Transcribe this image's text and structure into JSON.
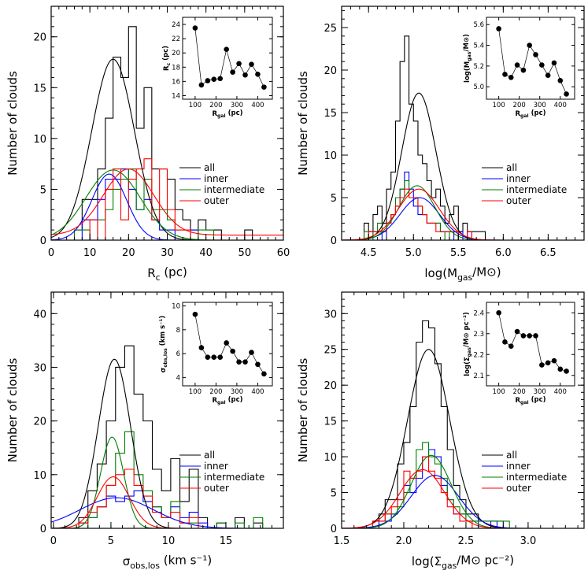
{
  "chart_data": [
    {
      "type": "histogram",
      "id": "rc",
      "xlabel": "R",
      "xlabel_sub": "c",
      "xlabel_post": " (pc)",
      "ylabel": "Number of clouds",
      "xlim": [
        0,
        60
      ],
      "ylim": [
        0,
        23
      ],
      "xticks": [
        0,
        10,
        20,
        30,
        40,
        50,
        60
      ],
      "xtick_labels": [
        "0",
        "10",
        "20",
        "30",
        "40",
        "50",
        "60"
      ],
      "yticks": [
        0,
        5,
        10,
        15,
        20
      ],
      "yminor": 1,
      "bin_width": 2,
      "bins_start": 6,
      "legend": [
        "all",
        "inner",
        "intermediate",
        "outer"
      ],
      "colors": [
        "#000000",
        "#0000ff",
        "#007f00",
        "#ff0000"
      ],
      "series": [
        {
          "name": "all",
          "counts": [
            1,
            4,
            4,
            7,
            12,
            18,
            16,
            21,
            11,
            15,
            7,
            7,
            6,
            3,
            2,
            1,
            2,
            1,
            1,
            0,
            0,
            0,
            1
          ]
        },
        {
          "name": "inner",
          "counts": [
            0,
            2,
            2,
            4,
            6,
            6,
            7,
            5,
            3,
            4,
            2,
            1,
            1,
            0,
            0,
            1
          ]
        },
        {
          "name": "intermediate",
          "counts": [
            1,
            1,
            0,
            2,
            3,
            5,
            6,
            7,
            3,
            6,
            3,
            3,
            2,
            1,
            1,
            0,
            1,
            1
          ]
        },
        {
          "name": "outer",
          "counts": [
            0,
            0,
            2,
            0,
            5,
            7,
            2,
            6,
            7,
            8,
            2,
            7,
            3,
            1,
            1,
            0,
            0,
            0,
            0,
            0,
            0,
            0,
            0
          ]
        }
      ],
      "gaussians": [
        {
          "name": "all",
          "amp": 17.8,
          "mu": 16.0,
          "sigma": 5.5,
          "offset": 0
        },
        {
          "name": "inner",
          "amp": 6.5,
          "mu": 15.0,
          "sigma": 4.5,
          "offset": 0
        },
        {
          "name": "intermediate",
          "amp": 6.9,
          "mu": 16.0,
          "sigma": 7.0,
          "offset": 0
        },
        {
          "name": "outer",
          "amp": 6.5,
          "mu": 20.0,
          "sigma": 6.5,
          "offset": 0.5
        }
      ],
      "inset": {
        "ylabel": "R_c (pc)",
        "ylabel_main": "R",
        "ylabel_sub": "c",
        "ylabel_post": " (pc)",
        "xlabel_main": "R",
        "xlabel_sub": "gal",
        "xlabel_post": " (pc)",
        "xlim": [
          40,
          470
        ],
        "ylim": [
          13.5,
          25
        ],
        "xticks": [
          100,
          200,
          300,
          400
        ],
        "yticks": [
          14,
          16,
          18,
          20,
          22,
          24
        ],
        "ytick_labels": [
          "14",
          "16",
          "18",
          "20",
          "22",
          "24"
        ],
        "x": [
          100,
          130,
          160,
          190,
          220,
          250,
          280,
          310,
          340,
          370,
          400,
          430
        ],
        "y": [
          23.5,
          15.5,
          16.1,
          16.3,
          16.4,
          20.5,
          17.3,
          18.5,
          16.9,
          18.4,
          17.0,
          15.2
        ]
      }
    },
    {
      "type": "histogram",
      "id": "mass",
      "xlabel": "log(M",
      "xlabel_sub": "gas",
      "xlabel_post": "/M⊙)",
      "ylabel": "Number of clouds",
      "xlim": [
        4.2,
        6.9
      ],
      "ylim": [
        0,
        27.5
      ],
      "xticks": [
        4.5,
        5.0,
        5.5,
        6.0,
        6.5
      ],
      "xtick_labels": [
        "4.5",
        "5.0",
        "5.5",
        "6.0",
        "6.5"
      ],
      "yticks": [
        0,
        5,
        10,
        15,
        20,
        25
      ],
      "yminor": 1,
      "bin_width": 0.05,
      "bins_start": 4.45,
      "legend": [
        "all",
        "inner",
        "intermediate",
        "outer"
      ],
      "colors": [
        "#000000",
        "#0000ff",
        "#007f00",
        "#ff0000"
      ],
      "series": [
        {
          "name": "all",
          "counts": [
            2,
            1,
            3,
            4,
            2,
            6,
            8,
            14,
            21,
            24,
            16,
            14,
            10,
            9,
            7,
            5,
            6,
            4,
            2,
            3,
            4,
            1,
            2,
            1,
            1,
            1,
            1
          ]
        },
        {
          "name": "inner",
          "counts": [
            0,
            0,
            1,
            1,
            0,
            2,
            3,
            4,
            6,
            8,
            6,
            4,
            3,
            3,
            2,
            2,
            2,
            1,
            1,
            1,
            0,
            1,
            0,
            1
          ]
        },
        {
          "name": "intermediate",
          "counts": [
            1,
            0,
            1,
            2,
            1,
            2,
            3,
            5,
            6,
            7,
            5,
            5,
            4,
            3,
            2,
            2,
            2,
            1,
            0,
            1,
            1
          ]
        },
        {
          "name": "outer",
          "counts": [
            0,
            1,
            1,
            1,
            1,
            2,
            3,
            4,
            5,
            6,
            5,
            5,
            4,
            3,
            2,
            2,
            1,
            1,
            1,
            1,
            1,
            0,
            0,
            1
          ]
        }
      ],
      "gaussians": [
        {
          "name": "all",
          "amp": 17.3,
          "mu": 5.06,
          "sigma": 0.19,
          "offset": 0
        },
        {
          "name": "inner",
          "amp": 5.0,
          "mu": 5.07,
          "sigma": 0.22,
          "offset": 0
        },
        {
          "name": "intermediate",
          "amp": 6.4,
          "mu": 5.04,
          "sigma": 0.2,
          "offset": 0
        },
        {
          "name": "outer",
          "amp": 6.0,
          "mu": 5.06,
          "sigma": 0.23,
          "offset": 0
        }
      ],
      "inset": {
        "ylabel_main": "log(M",
        "ylabel_sub": "gas",
        "ylabel_post": "/M⊙)",
        "xlabel_main": "R",
        "xlabel_sub": "gal",
        "xlabel_post": " (pc)",
        "xlim": [
          40,
          470
        ],
        "ylim": [
          4.88,
          5.67
        ],
        "xticks": [
          100,
          200,
          300,
          400
        ],
        "yticks": [
          5.0,
          5.2,
          5.4,
          5.6
        ],
        "ytick_labels": [
          "5.0",
          "5.2",
          "5.4",
          "5.6"
        ],
        "x": [
          100,
          130,
          160,
          190,
          220,
          250,
          280,
          310,
          340,
          370,
          400,
          430
        ],
        "y": [
          5.56,
          5.12,
          5.09,
          5.21,
          5.16,
          5.4,
          5.31,
          5.21,
          5.11,
          5.23,
          5.06,
          4.93
        ]
      }
    },
    {
      "type": "histogram",
      "id": "sigma",
      "xlabel": "σ",
      "xlabel_sub": "obs,los",
      "xlabel_post": " (km s⁻¹)",
      "ylabel": "Number of clouds",
      "xlim": [
        -0.2,
        20
      ],
      "ylim": [
        0,
        44
      ],
      "xticks": [
        0,
        5,
        10,
        15
      ],
      "xtick_labels": [
        "0",
        "5",
        "10",
        "15"
      ],
      "yticks": [
        0,
        10,
        20,
        30,
        40
      ],
      "yminor": 2,
      "bin_width": 0.8,
      "bins_start": 1.4,
      "legend": [
        "all",
        "inner",
        "intermediate",
        "outer"
      ],
      "colors": [
        "#000000",
        "#0000ff",
        "#007f00",
        "#ff0000"
      ],
      "series": [
        {
          "name": "all",
          "counts": [
            0,
            2,
            7,
            12,
            20,
            30,
            34,
            25,
            20,
            11,
            7,
            13,
            5,
            11,
            2,
            0,
            1,
            0,
            2,
            0,
            1
          ]
        },
        {
          "name": "inner",
          "counts": [
            0,
            1,
            2,
            4,
            6,
            5,
            6,
            7,
            5,
            4,
            2,
            4,
            2,
            3,
            1,
            0,
            0,
            0,
            0,
            0,
            0
          ]
        },
        {
          "name": "intermediate",
          "counts": [
            0,
            0,
            2,
            4,
            8,
            14,
            18,
            10,
            7,
            4,
            2,
            5,
            1,
            1,
            0,
            0,
            1,
            0,
            1,
            0,
            2
          ]
        },
        {
          "name": "outer",
          "counts": [
            0,
            1,
            3,
            4,
            8,
            10,
            11,
            8,
            6,
            3,
            2,
            3,
            1,
            2,
            0,
            0,
            0,
            0,
            0,
            0,
            0
          ]
        }
      ],
      "gaussians": [
        {
          "name": "all",
          "amp": 31.5,
          "mu": 5.3,
          "sigma": 1.4,
          "offset": 0
        },
        {
          "name": "inner",
          "amp": 5.7,
          "mu": 5.5,
          "sigma": 3.2,
          "offset": 0
        },
        {
          "name": "intermediate",
          "amp": 17.0,
          "mu": 5.1,
          "sigma": 1.0,
          "offset": 0
        },
        {
          "name": "outer",
          "amp": 9.6,
          "mu": 5.2,
          "sigma": 1.4,
          "offset": 0
        }
      ],
      "inset": {
        "ylabel_main": "σ",
        "ylabel_sub": "obs,los",
        "ylabel_post": " (km s⁻¹)",
        "xlabel_main": "R",
        "xlabel_sub": "gal",
        "xlabel_post": " (pc)",
        "xlim": [
          40,
          470
        ],
        "ylim": [
          3.3,
          10.3
        ],
        "xticks": [
          100,
          200,
          300,
          400
        ],
        "yticks": [
          4,
          6,
          8,
          10
        ],
        "ytick_labels": [
          "4",
          "6",
          "8",
          "10"
        ],
        "x": [
          100,
          130,
          160,
          190,
          220,
          250,
          280,
          310,
          340,
          370,
          400,
          430
        ],
        "y": [
          9.3,
          6.5,
          5.7,
          5.7,
          5.7,
          6.9,
          6.2,
          5.3,
          5.3,
          6.1,
          5.1,
          4.3
        ]
      }
    },
    {
      "type": "histogram",
      "id": "surface",
      "xlabel": "log(Σ",
      "xlabel_sub": "gas",
      "xlabel_post": "/M⊙ pc⁻²)",
      "ylabel": "Number of clouds",
      "xlim": [
        1.5,
        3.45
      ],
      "ylim": [
        0,
        33
      ],
      "xticks": [
        1.5,
        2.0,
        2.5,
        3.0
      ],
      "xtick_labels": [
        "1.5",
        "2.0",
        "2.5",
        "3.0"
      ],
      "yticks": [
        0,
        5,
        10,
        15,
        20,
        25,
        30
      ],
      "yminor": 1,
      "bin_width": 0.05,
      "bins_start": 1.75,
      "legend": [
        "all",
        "inner",
        "intermediate",
        "outer"
      ],
      "colors": [
        "#000000",
        "#0000ff",
        "#007f00",
        "#ff0000"
      ],
      "series": [
        {
          "name": "all",
          "counts": [
            1,
            2,
            4,
            4,
            9,
            12,
            17,
            26,
            29,
            28,
            23,
            17,
            11,
            6,
            4,
            2,
            2,
            1,
            1,
            1,
            1
          ]
        },
        {
          "name": "inner",
          "counts": [
            0,
            1,
            1,
            2,
            4,
            6,
            5,
            7,
            10,
            11,
            10,
            6,
            4,
            2,
            2,
            1,
            1,
            0,
            0,
            1
          ]
        },
        {
          "name": "intermediate",
          "counts": [
            1,
            1,
            2,
            2,
            3,
            5,
            7,
            11,
            12,
            10,
            9,
            7,
            4,
            3,
            2,
            1,
            1,
            1,
            1,
            1,
            1,
            1
          ]
        },
        {
          "name": "outer",
          "counts": [
            1,
            1,
            2,
            3,
            4,
            8,
            7,
            8,
            10,
            8,
            7,
            5,
            3,
            2,
            1,
            1,
            0,
            0,
            0,
            0
          ]
        }
      ],
      "gaussians": [
        {
          "name": "all",
          "amp": 25.0,
          "mu": 2.2,
          "sigma": 0.17,
          "offset": 0
        },
        {
          "name": "inner",
          "amp": 7.4,
          "mu": 2.25,
          "sigma": 0.19,
          "offset": 0
        },
        {
          "name": "intermediate",
          "amp": 10.2,
          "mu": 2.22,
          "sigma": 0.16,
          "offset": 0
        },
        {
          "name": "outer",
          "amp": 8.2,
          "mu": 2.15,
          "sigma": 0.18,
          "offset": 0
        }
      ],
      "inset": {
        "ylabel_main": "log(Σ",
        "ylabel_sub": "gas",
        "ylabel_post": "/M⊙ pc⁻²)",
        "xlabel_main": "R",
        "xlabel_sub": "gal",
        "xlabel_post": " (pc)",
        "xlim": [
          40,
          470
        ],
        "ylim": [
          2.05,
          2.45
        ],
        "xticks": [
          100,
          200,
          300,
          400
        ],
        "yticks": [
          2.1,
          2.2,
          2.3,
          2.4
        ],
        "ytick_labels": [
          "2.1",
          "2.2",
          "2.3",
          "2.4"
        ],
        "x": [
          100,
          130,
          160,
          190,
          220,
          250,
          280,
          310,
          340,
          370,
          400,
          430
        ],
        "y": [
          2.4,
          2.26,
          2.24,
          2.31,
          2.29,
          2.29,
          2.29,
          2.15,
          2.16,
          2.17,
          2.13,
          2.12
        ]
      }
    }
  ]
}
